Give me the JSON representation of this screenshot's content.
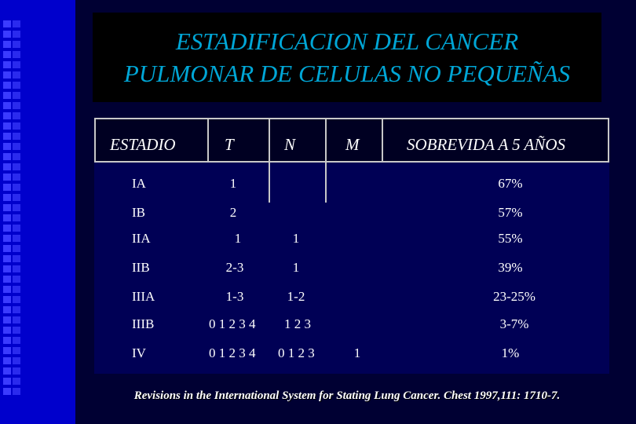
{
  "title": {
    "line1": "ESTADIFICACION DEL CANCER",
    "line2": "PULMONAR DE CELULAS NO PEQUEÑAS"
  },
  "table": {
    "headers": {
      "estadio": "ESTADIO",
      "t": "T",
      "n": "N",
      "m": "M",
      "survival": "SOBREVIDA A 5 AÑOS"
    },
    "rows": [
      {
        "estadio": "IA",
        "t": "1",
        "n": "",
        "m": "",
        "survival": "67%"
      },
      {
        "estadio": "IB",
        "t": "2",
        "n": "",
        "m": "",
        "survival": "57%"
      },
      {
        "estadio": "IIA",
        "t": "1",
        "n": "1",
        "m": "",
        "survival": "55%"
      },
      {
        "estadio": "IIB",
        "t": "2-3",
        "n": "1",
        "m": "",
        "survival": "39%"
      },
      {
        "estadio": "IIIA",
        "t": "1-3",
        "n": "1-2",
        "m": "",
        "survival": "23-25%"
      },
      {
        "estadio": "IIIB",
        "t": "0 1 2 3 4",
        "n": "1 2 3",
        "m": "",
        "survival": "3-7%"
      },
      {
        "estadio": "IV",
        "t": "0 1 2 3 4",
        "n": "0 1 2 3",
        "m": "1",
        "survival": "1%"
      }
    ]
  },
  "citation": "Revisions in the International System for Stating Lung Cancer. Chest 1997,111: 1710-7.",
  "colors": {
    "title_text": "#00a6d6",
    "background": "#000033",
    "sidebar": "#0000cc"
  }
}
